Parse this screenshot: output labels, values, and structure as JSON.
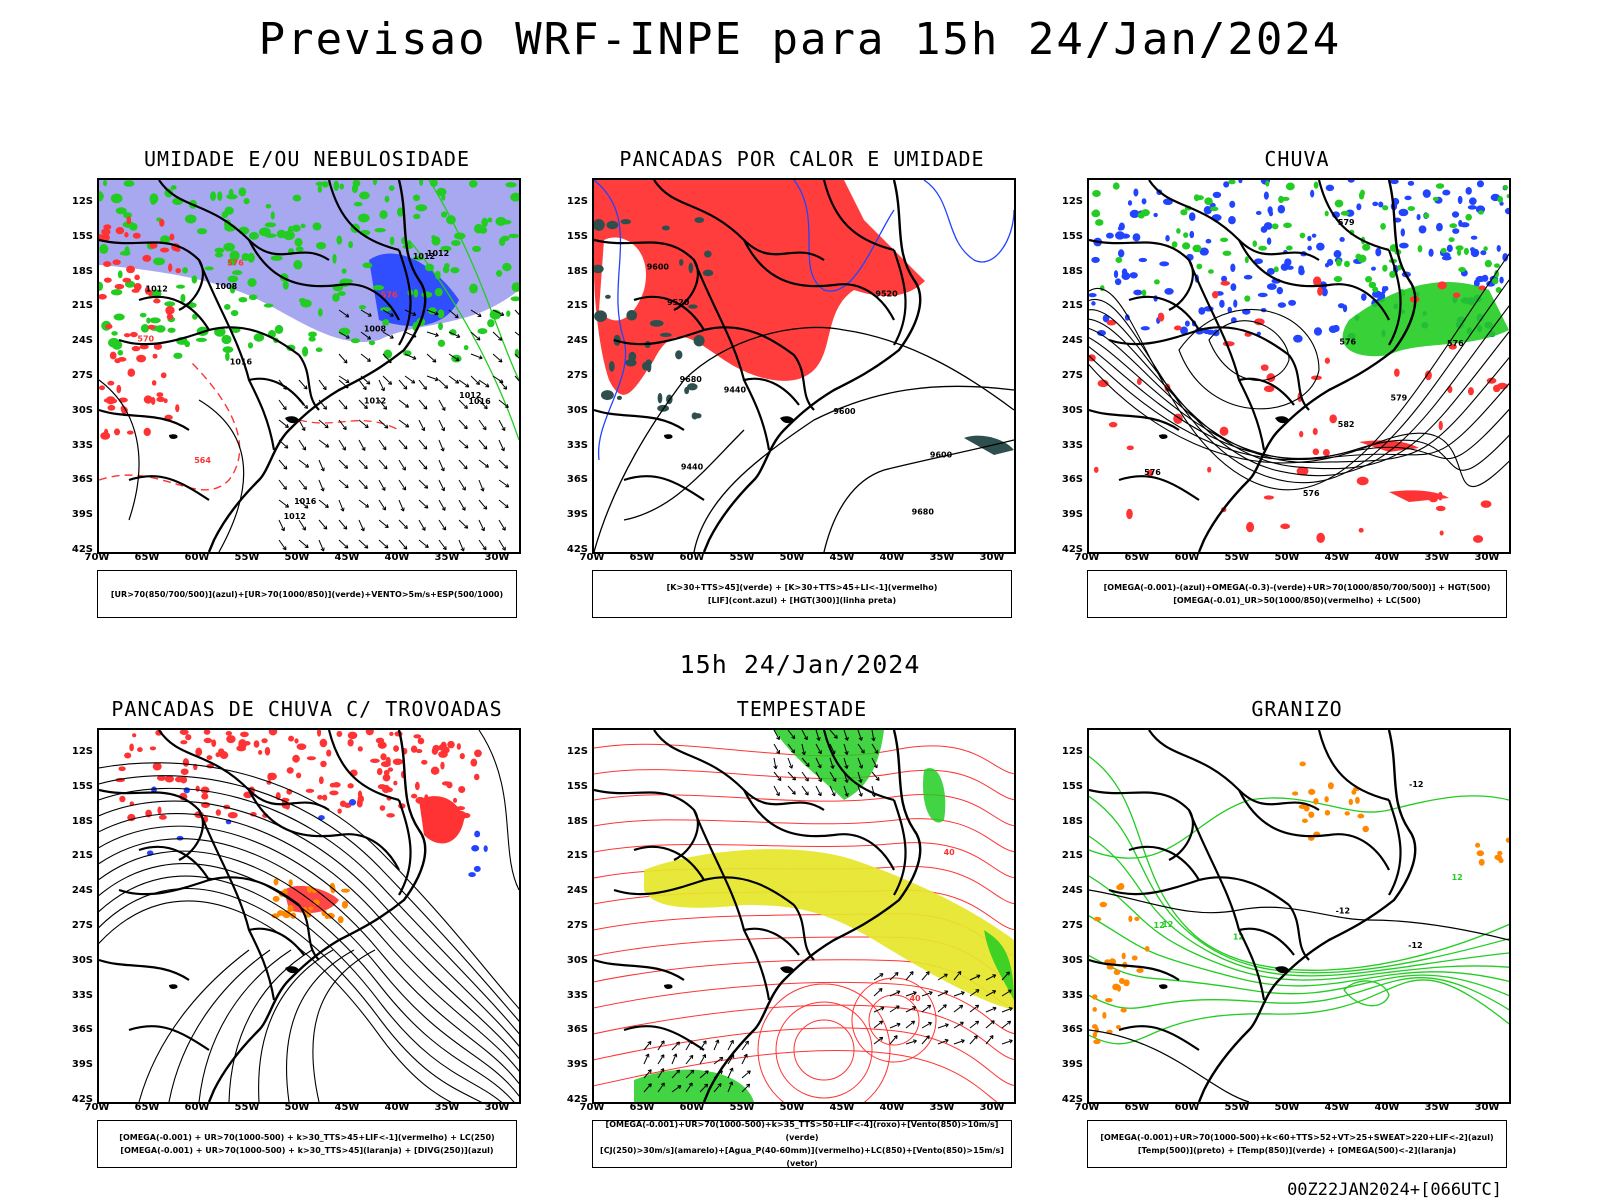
{
  "title": "Previsao WRF-INPE  para 15h 24/Jan/2024",
  "mid_time": "15h 24/Jan/2024",
  "footer": "00Z22JAN2024+[066UTC]",
  "lat_labels": [
    "12S",
    "15S",
    "18S",
    "21S",
    "24S",
    "27S",
    "30S",
    "33S",
    "36S",
    "39S",
    "42S"
  ],
  "lon_labels": [
    "70W",
    "65W",
    "60W",
    "55W",
    "50W",
    "45W",
    "40W",
    "35W",
    "30W"
  ],
  "colors": {
    "red": "#ff3333",
    "green": "#22cc22",
    "blue": "#2244ff",
    "lavender": "#9999ee",
    "yellow": "#e6e62a",
    "teal": "#2f4f4f",
    "orange": "#ff8800"
  },
  "panels": [
    {
      "title": "UMIDADE E/OU NEBULOSIDADE",
      "legend": [
        "[UR>70(850/700/500)](azul)+[UR>70(1000/850)](verde)+VENTO>5m/s+ESP(500/1000)"
      ],
      "labels": [
        "1012",
        "1008",
        "1008",
        "1016",
        "1012",
        "1012",
        "1012",
        "1016",
        "1012",
        "1016",
        "1012",
        "576",
        "576",
        "564",
        "570"
      ]
    },
    {
      "title": "PANCADAS POR CALOR E UMIDADE",
      "legend": [
        "[K>30+TTS>45](verde) + [K>30+TTS>45+LI<-1](vermelho)",
        "[LIF](cont.azul) + [HGT(300)](linha preta)"
      ],
      "labels": [
        "9680",
        "9680",
        "9600",
        "9600",
        "9600",
        "9520",
        "9440",
        "9440",
        "9520"
      ]
    },
    {
      "title": "CHUVA",
      "legend": [
        "[OMEGA(-0.001)-(azul)+OMEGA(-0.3)-(verde)+UR>70(1000/850/700/500)] + HGT(500)",
        "[OMEGA(-0.01)_UR>50(1000/850)(vermelho) + LC(500)"
      ],
      "labels": [
        "582",
        "576",
        "576",
        "576",
        "576",
        "579",
        "579"
      ]
    },
    {
      "title": "PANCADAS DE CHUVA C/ TROVOADAS",
      "legend": [
        "[OMEGA(-0.001) + UR>70(1000-500) + k>30_TTS>45+LIF<-1](vermelho) + LC(250)",
        "[OMEGA(-0.001) + UR>70(1000-500) + k>30_TTS>45](laranja) + [DIVG(250)](azul)"
      ],
      "labels": []
    },
    {
      "title": "TEMPESTADE",
      "legend": [
        "[OMEGA(-0.001)+UR>70(1000-500)+k>35_TTS>50+LIF<-4](roxo)+[Vento(850)>10m/s](verde)",
        "[CJ(250)>30m/s](amarelo)+[Agua_P(40-60mm)](vermelho)+LC(850)+[Vento(850)>15m/s](vetor)"
      ],
      "labels": [
        "40",
        "40"
      ]
    },
    {
      "title": "GRANIZO",
      "legend": [
        "[OMEGA(-0.001)+UR>70(1000-500)+k<60+TTS>52+VT>25+SWEAT>220+LIF<-2](azul)",
        "[Temp(500)](preto) + [Temp(850)](verde) + [OMEGA(500)<-2](laranja)"
      ],
      "labels": [
        "-12",
        "-12",
        "-12",
        "12",
        "12",
        "12",
        "12"
      ]
    }
  ]
}
